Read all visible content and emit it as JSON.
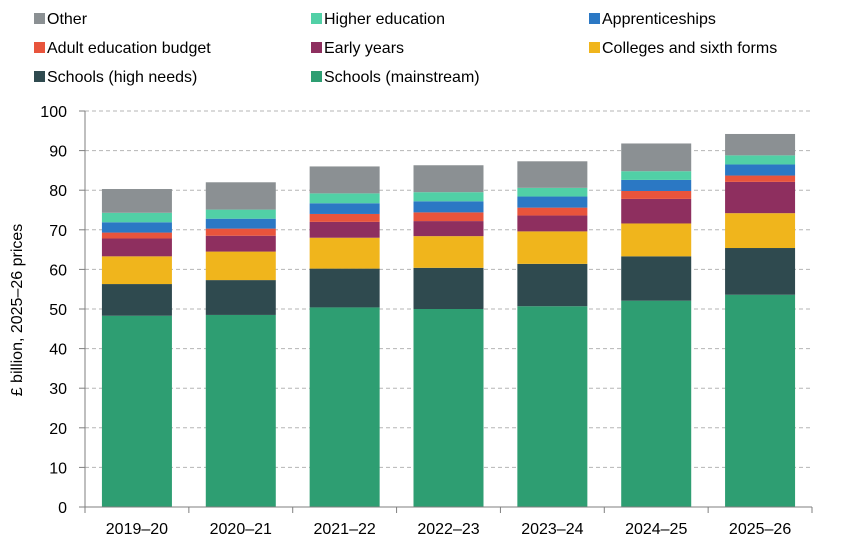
{
  "chart_data": {
    "type": "bar",
    "stacked": true,
    "title": "",
    "xlabel": "",
    "ylabel": "£ billion, 2025–26 prices",
    "ylim": [
      0,
      100
    ],
    "yticks": [
      0,
      10,
      20,
      30,
      40,
      50,
      60,
      70,
      80,
      90,
      100
    ],
    "grid": "horizontal dashed",
    "legend_position": "top",
    "categories": [
      "2019–20",
      "2020–21",
      "2021–22",
      "2022–23",
      "2023–24",
      "2024–25",
      "2025–26"
    ],
    "series": [
      {
        "name": "Schools (mainstream)",
        "color": "#2e9e72",
        "values": [
          48.3,
          48.5,
          50.4,
          50.0,
          50.7,
          52.1,
          53.6
        ]
      },
      {
        "name": "Schools (high needs)",
        "color": "#2f4a4f",
        "values": [
          8.0,
          8.8,
          9.8,
          10.4,
          10.7,
          11.2,
          11.8
        ]
      },
      {
        "name": "Colleges and sixth forms",
        "color": "#f0b51c",
        "values": [
          7.0,
          7.2,
          7.8,
          8.0,
          8.2,
          8.3,
          8.8
        ]
      },
      {
        "name": "Early years",
        "color": "#8e2f5f",
        "values": [
          4.5,
          4.0,
          4.0,
          3.8,
          4.0,
          6.2,
          7.9
        ]
      },
      {
        "name": "Adult education budget",
        "color": "#e8543c",
        "values": [
          1.5,
          1.8,
          2.0,
          2.2,
          2.0,
          2.0,
          1.6
        ]
      },
      {
        "name": "Apprenticeships",
        "color": "#2b78c4",
        "values": [
          2.6,
          2.5,
          2.7,
          2.8,
          2.8,
          2.8,
          2.8
        ]
      },
      {
        "name": "Higher education",
        "color": "#51d0a6",
        "values": [
          2.4,
          2.3,
          2.5,
          2.3,
          2.2,
          2.2,
          2.3
        ]
      },
      {
        "name": "Other",
        "color": "#8b9093",
        "values": [
          6.0,
          6.9,
          6.8,
          6.8,
          6.7,
          7.0,
          5.4
        ]
      }
    ],
    "legend_order": [
      "Other",
      "Higher education",
      "Apprenticeships",
      "Adult education budget",
      "Early years",
      "Colleges and sixth forms",
      "Schools (high needs)",
      "Schools (mainstream)"
    ]
  }
}
